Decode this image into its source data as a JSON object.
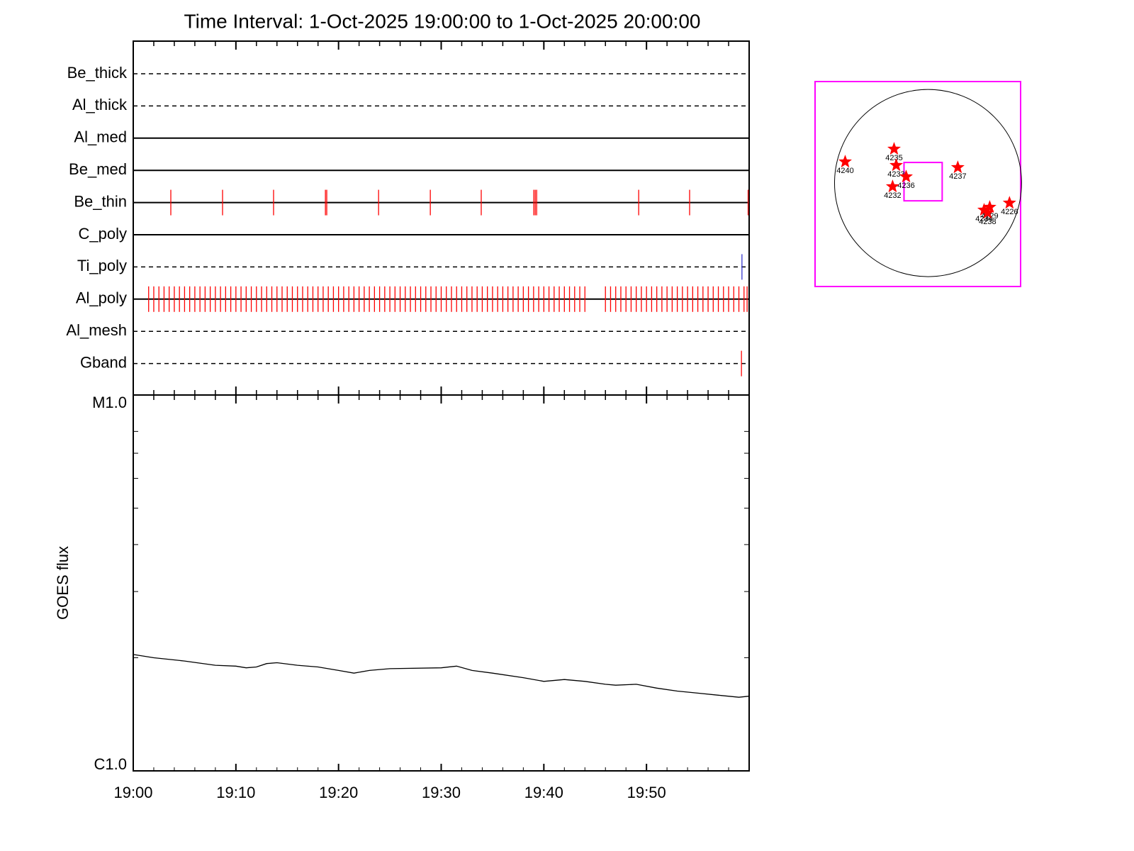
{
  "chart_data": [
    {
      "type": "event",
      "title": "Time Interval:  1-Oct-2025 19:00:00 to  1-Oct-2025 20:00:00",
      "categories": [
        "Be_thick",
        "Al_thick",
        "Al_med",
        "Be_med",
        "Be_thin",
        "C_poly",
        "Ti_poly",
        "Al_poly",
        "Al_mesh",
        "Gband"
      ],
      "linestyles": [
        "dashed",
        "dashed",
        "solid",
        "solid",
        "solid",
        "solid",
        "dashed",
        "solid",
        "dashed",
        "dashed"
      ],
      "event_colors": [
        "#ff0000",
        "#ff0000",
        "#ff0000",
        "#ff0000",
        "#ff0000",
        "#ff0000",
        "#3333cc",
        "#ff0000",
        "#ff0000",
        "#ff0000"
      ],
      "events": [
        [],
        [],
        [],
        [],
        [
          3.66,
          8.7,
          13.67,
          18.72,
          18.85,
          23.9,
          28.94,
          33.9,
          39.02,
          39.16,
          39.3,
          49.24,
          54.2,
          59.9
        ],
        [],
        [
          59.3
        ],
        [
          1.5,
          2,
          2.5,
          3,
          3.5,
          4,
          4.5,
          5,
          5.5,
          6,
          6.5,
          7,
          7.5,
          8,
          8.5,
          9,
          9.5,
          10,
          10.5,
          11,
          11.5,
          12,
          12.5,
          13,
          13.5,
          14,
          14.5,
          15,
          15.5,
          16,
          16.5,
          17,
          17.5,
          18,
          18.5,
          19,
          19.5,
          20,
          20.5,
          21,
          21.5,
          22,
          22.5,
          23,
          23.5,
          24,
          24.5,
          25,
          25.5,
          26,
          26.5,
          27,
          27.5,
          28,
          28.5,
          29,
          29.5,
          30,
          30.5,
          31,
          31.5,
          32,
          32.5,
          33,
          33.5,
          34,
          34.5,
          35,
          35.5,
          36,
          36.5,
          37,
          37.5,
          38,
          38.5,
          39,
          39.5,
          40,
          40.5,
          41,
          41.5,
          42,
          42.5,
          43,
          43.5,
          44,
          46,
          46.5,
          47,
          47.5,
          48,
          48.5,
          49,
          49.5,
          50,
          50.5,
          51,
          51.5,
          52,
          52.5,
          53,
          53.5,
          54,
          54.5,
          55,
          55.5,
          56,
          56.5,
          57,
          57.5,
          58,
          58.5,
          59,
          59.5,
          59.8
        ],
        [],
        [
          59.25
        ]
      ]
    },
    {
      "type": "line",
      "ylabel": "GOES flux",
      "x": [
        0,
        2,
        5,
        8,
        10,
        11,
        12,
        13,
        14,
        16,
        18,
        20,
        21.5,
        23,
        25,
        30,
        31.5,
        33,
        35,
        38,
        40,
        42,
        44,
        46,
        47,
        49,
        51,
        53,
        55,
        57,
        59,
        60
      ],
      "values": [
        2.04e-06,
        2e-06,
        1.96e-06,
        1.91e-06,
        1.9e-06,
        1.88e-06,
        1.89e-06,
        1.93e-06,
        1.94e-06,
        1.91e-06,
        1.89e-06,
        1.85e-06,
        1.82e-06,
        1.85e-06,
        1.87e-06,
        1.88e-06,
        1.9e-06,
        1.85e-06,
        1.82e-06,
        1.77e-06,
        1.73e-06,
        1.75e-06,
        1.73e-06,
        1.7e-06,
        1.69e-06,
        1.7e-06,
        1.66e-06,
        1.63e-06,
        1.61e-06,
        1.59e-06,
        1.57e-06,
        1.58e-06
      ],
      "color": "#000000",
      "xlim": [
        0,
        60
      ],
      "xticks": [
        {
          "value": 0,
          "label": "19:00"
        },
        {
          "value": 10,
          "label": "19:10"
        },
        {
          "value": 20,
          "label": "19:20"
        },
        {
          "value": 30,
          "label": "19:30"
        },
        {
          "value": 40,
          "label": "19:40"
        },
        {
          "value": 50,
          "label": "19:50"
        }
      ],
      "minor_xticks": [
        2,
        4,
        6,
        8,
        12,
        14,
        16,
        18,
        22,
        24,
        26,
        28,
        32,
        34,
        36,
        38,
        42,
        44,
        46,
        48,
        52,
        54,
        56,
        58
      ],
      "ylim": [
        1e-06,
        1e-05
      ],
      "log_scale": true,
      "yticks": [
        {
          "value": 1e-06,
          "label": "C1.0"
        },
        {
          "value": 1e-05,
          "label": "M1.0"
        }
      ],
      "minor_yticks": [
        2e-06,
        3e-06,
        4e-06,
        5e-06,
        6e-06,
        7e-06,
        8e-06
      ]
    },
    {
      "type": "map",
      "xlim": [
        -1160,
        950
      ],
      "ylim": [
        -1060,
        1040
      ],
      "disk_radius": 960,
      "fov": {
        "xlim": [
          -247,
          145
        ],
        "ylim": [
          -182,
          211
        ]
      },
      "frame_color": "#ff00ff",
      "marker_color": "#ff0000",
      "regions": {
        "labels": [
          "4240",
          "4235",
          "4233",
          "4236",
          "4232",
          "4237",
          "4234",
          "4229",
          "4238",
          "4226"
        ],
        "x": [
          -851,
          -349,
          -327,
          -225,
          -364,
          305,
          575,
          633,
          611,
          836
        ],
        "y": [
          218,
          349,
          182,
          65,
          -36,
          160,
          -276,
          -247,
          -305,
          -204
        ]
      }
    }
  ]
}
